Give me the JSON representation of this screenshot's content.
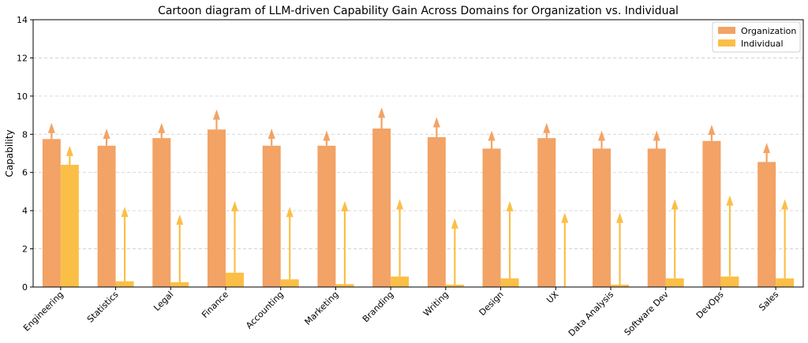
{
  "chart_data": {
    "type": "bar",
    "title": "Cartoon diagram of LLM-driven Capability Gain Across Domains for Organization vs. Individual",
    "xlabel": "",
    "ylabel": "Capability",
    "ylim": [
      0,
      14
    ],
    "yticks": [
      0,
      2,
      4,
      6,
      8,
      10,
      12,
      14
    ],
    "grid": "y-dashed",
    "legend_position": "top-right",
    "categories": [
      "Engineering",
      "Statistics",
      "Legal",
      "Finance",
      "Accounting",
      "Marketing",
      "Branding",
      "Writing",
      "Design",
      "UX",
      "Data Analysis",
      "Software Dev",
      "DevOps",
      "Sales"
    ],
    "series": [
      {
        "name": "Organization",
        "color": "#f2a365",
        "values": [
          7.75,
          7.4,
          7.8,
          8.25,
          7.4,
          7.4,
          8.3,
          7.85,
          7.25,
          7.8,
          7.25,
          7.25,
          7.65,
          6.55
        ],
        "arrow_tips": [
          8.6,
          8.3,
          8.6,
          9.3,
          8.3,
          8.2,
          9.4,
          8.9,
          8.2,
          8.6,
          8.2,
          8.2,
          8.5,
          7.55
        ]
      },
      {
        "name": "Individual",
        "color": "#fbbf47",
        "values": [
          6.4,
          0.3,
          0.25,
          0.75,
          0.4,
          0.15,
          0.55,
          0.12,
          0.45,
          0.0,
          0.12,
          0.45,
          0.55,
          0.45
        ],
        "arrow_tips": [
          7.4,
          4.2,
          3.8,
          4.5,
          4.2,
          4.5,
          4.6,
          3.6,
          4.5,
          3.9,
          3.9,
          4.6,
          4.8,
          4.6
        ]
      }
    ]
  }
}
